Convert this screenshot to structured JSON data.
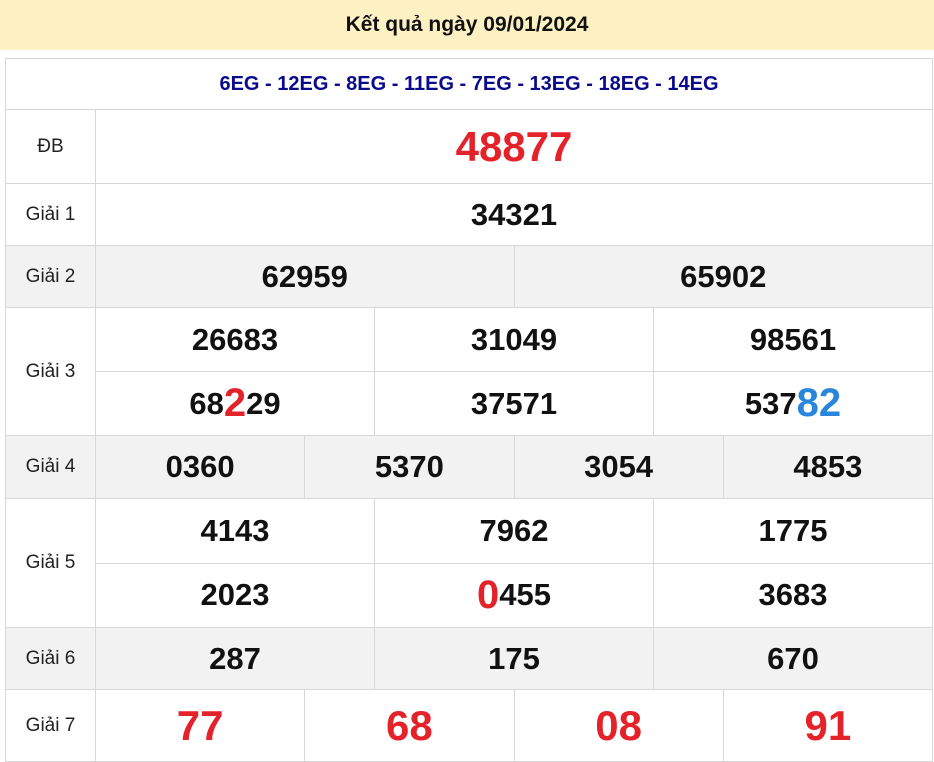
{
  "header": {
    "title": "Kết quả ngày 09/01/2024"
  },
  "codes": "6EG - 12EG - 8EG - 11EG - 7EG - 13EG - 18EG - 14EG",
  "colors": {
    "header_bg": "#fdf1c3",
    "codes": "#0a0a8c",
    "red": "#e4222a",
    "blue": "#2a86dc"
  },
  "prizes": [
    {
      "label": "ĐB",
      "rows": [
        [
          {
            "parts": [
              {
                "t": "48877",
                "c": "red"
              }
            ]
          }
        ]
      ]
    },
    {
      "label": "Giải 1",
      "rows": [
        [
          {
            "parts": [
              {
                "t": "34321"
              }
            ]
          }
        ]
      ]
    },
    {
      "label": "Giải 2",
      "rows": [
        [
          {
            "parts": [
              {
                "t": "62959"
              }
            ]
          },
          {
            "parts": [
              {
                "t": "65902"
              }
            ]
          }
        ]
      ]
    },
    {
      "label": "Giải 3",
      "rows": [
        [
          {
            "parts": [
              {
                "t": "26683"
              }
            ]
          },
          {
            "parts": [
              {
                "t": "31049"
              }
            ]
          },
          {
            "parts": [
              {
                "t": "98561"
              }
            ]
          }
        ],
        [
          {
            "parts": [
              {
                "t": "68"
              },
              {
                "t": "2",
                "c": "red"
              },
              {
                "t": "29"
              }
            ]
          },
          {
            "parts": [
              {
                "t": "37571"
              }
            ]
          },
          {
            "parts": [
              {
                "t": "537"
              },
              {
                "t": "82",
                "c": "blue"
              }
            ]
          }
        ]
      ]
    },
    {
      "label": "Giải 4",
      "rows": [
        [
          {
            "parts": [
              {
                "t": "0360"
              }
            ]
          },
          {
            "parts": [
              {
                "t": "5370"
              }
            ]
          },
          {
            "parts": [
              {
                "t": "3054"
              }
            ]
          },
          {
            "parts": [
              {
                "t": "4853"
              }
            ]
          }
        ]
      ]
    },
    {
      "label": "Giải 5",
      "rows": [
        [
          {
            "parts": [
              {
                "t": "4143"
              }
            ]
          },
          {
            "parts": [
              {
                "t": "7962"
              }
            ]
          },
          {
            "parts": [
              {
                "t": "1775"
              }
            ]
          }
        ],
        [
          {
            "parts": [
              {
                "t": "2023"
              }
            ]
          },
          {
            "parts": [
              {
                "t": "0",
                "c": "red"
              },
              {
                "t": "455"
              }
            ]
          },
          {
            "parts": [
              {
                "t": "3683"
              }
            ]
          }
        ]
      ]
    },
    {
      "label": "Giải 6",
      "rows": [
        [
          {
            "parts": [
              {
                "t": "287"
              }
            ]
          },
          {
            "parts": [
              {
                "t": "175"
              }
            ]
          },
          {
            "parts": [
              {
                "t": "670"
              }
            ]
          }
        ]
      ]
    },
    {
      "label": "Giải 7",
      "rows": [
        [
          {
            "parts": [
              {
                "t": "77",
                "c": "red"
              }
            ]
          },
          {
            "parts": [
              {
                "t": "68",
                "c": "red"
              }
            ]
          },
          {
            "parts": [
              {
                "t": "08",
                "c": "red"
              }
            ]
          },
          {
            "parts": [
              {
                "t": "91",
                "c": "red"
              }
            ]
          }
        ]
      ]
    }
  ]
}
